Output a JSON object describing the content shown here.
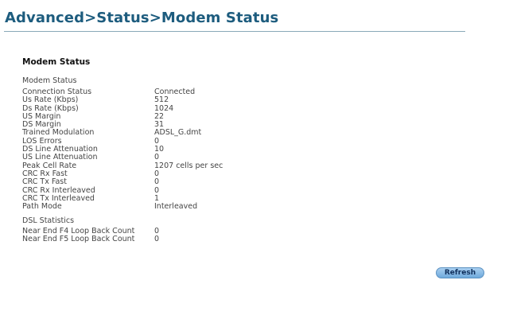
{
  "header": {
    "title": "Advanced>Status>Modem Status"
  },
  "section_title": "Modem Status",
  "modem_status": {
    "heading": "Modem Status",
    "rows": [
      {
        "label": "Connection Status",
        "value": "Connected"
      },
      {
        "label": "Us Rate (Kbps)",
        "value": "512"
      },
      {
        "label": "Ds Rate (Kbps)",
        "value": "1024"
      },
      {
        "label": "US Margin",
        "value": "22"
      },
      {
        "label": "DS Margin",
        "value": "31"
      },
      {
        "label": "Trained Modulation",
        "value": "ADSL_G.dmt"
      },
      {
        "label": "LOS Errors",
        "value": "0"
      },
      {
        "label": "DS Line Attenuation",
        "value": "10"
      },
      {
        "label": "US Line Attenuation",
        "value": "0"
      },
      {
        "label": "Peak Cell Rate",
        "value": "1207 cells per sec"
      },
      {
        "label": "CRC Rx Fast",
        "value": "0"
      },
      {
        "label": "CRC Tx Fast",
        "value": "0"
      },
      {
        "label": "CRC Rx Interleaved",
        "value": "0"
      },
      {
        "label": "CRC Tx Interleaved",
        "value": "1"
      },
      {
        "label": "Path Mode",
        "value": "Interleaved"
      }
    ]
  },
  "dsl_statistics": {
    "heading": "DSL Statistics",
    "rows": [
      {
        "label": "Near End F4 Loop Back Count",
        "value": "0"
      },
      {
        "label": "Near End F5 Loop Back Count",
        "value": "0"
      }
    ]
  },
  "buttons": {
    "refresh": "Refresh"
  },
  "colors": {
    "title": "#1d5c7e",
    "button": "#7fb6e0"
  }
}
